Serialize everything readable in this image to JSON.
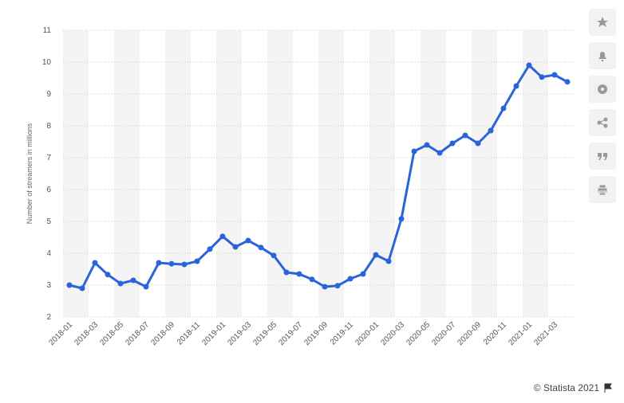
{
  "chart_data": {
    "type": "line",
    "y_label": "Number of streamers in millions",
    "source": "© Statista 2021",
    "categories": [
      "2018-01",
      null,
      "2018-03",
      null,
      "2018-05",
      null,
      "2018-07",
      null,
      "2018-09",
      null,
      "2018-11",
      null,
      "2019-01",
      null,
      "2019-03",
      null,
      "2019-05",
      null,
      "2019-07",
      null,
      "2019-09",
      null,
      "2019-11",
      null,
      "2020-01",
      null,
      "2020-03",
      null,
      "2020-05",
      null,
      "2020-07",
      null,
      "2020-09",
      null,
      "2020-11",
      null,
      "2021-01",
      null,
      "2021-03",
      null
    ],
    "values": [
      3.0,
      2.9,
      3.7,
      3.33,
      3.05,
      3.15,
      2.95,
      3.7,
      3.67,
      3.65,
      3.75,
      4.13,
      4.53,
      4.2,
      4.4,
      4.18,
      3.93,
      3.4,
      3.35,
      3.18,
      2.95,
      2.98,
      3.2,
      3.35,
      3.95,
      3.75,
      5.08,
      7.2,
      7.4,
      7.15,
      7.45,
      7.7,
      7.45,
      7.85,
      8.55,
      9.25,
      9.9,
      9.53,
      9.6,
      9.38
    ],
    "color": "#2b63d9",
    "ylim": [
      2,
      11
    ],
    "yticks": [
      2,
      3,
      4,
      5,
      6,
      7,
      8,
      9,
      10,
      11
    ],
    "grid": true
  }
}
